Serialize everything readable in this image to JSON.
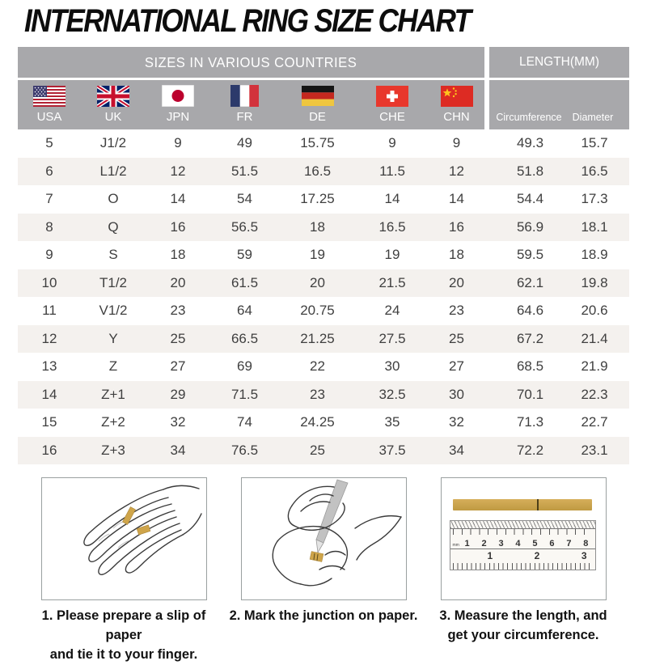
{
  "title": "INTERNATIONAL RING SIZE CHART",
  "table": {
    "group_headers": [
      {
        "label": "SIZES IN VARIOUS COUNTRIES"
      },
      {
        "label": "LENGTH(MM)"
      }
    ],
    "columns": [
      {
        "id": "usa",
        "label": "USA",
        "icon": "usa-flag-icon"
      },
      {
        "id": "uk",
        "label": "UK",
        "icon": "uk-flag-icon"
      },
      {
        "id": "jpn",
        "label": "JPN",
        "icon": "japan-flag-icon"
      },
      {
        "id": "fr",
        "label": "FR",
        "icon": "france-flag-icon"
      },
      {
        "id": "de",
        "label": "DE",
        "icon": "germany-flag-icon"
      },
      {
        "id": "che",
        "label": "CHE",
        "icon": "switzerland-flag-icon"
      },
      {
        "id": "chn",
        "label": "CHN",
        "icon": "china-flag-icon"
      },
      {
        "id": "circumference",
        "label": "Circumference"
      },
      {
        "id": "diameter",
        "label": "Diameter"
      }
    ],
    "rows": [
      [
        "5",
        "J1/2",
        "9",
        "49",
        "15.75",
        "9",
        "9",
        "49.3",
        "15.7"
      ],
      [
        "6",
        "L1/2",
        "12",
        "51.5",
        "16.5",
        "11.5",
        "12",
        "51.8",
        "16.5"
      ],
      [
        "7",
        "O",
        "14",
        "54",
        "17.25",
        "14",
        "14",
        "54.4",
        "17.3"
      ],
      [
        "8",
        "Q",
        "16",
        "56.5",
        "18",
        "16.5",
        "16",
        "56.9",
        "18.1"
      ],
      [
        "9",
        "S",
        "18",
        "59",
        "19",
        "19",
        "18",
        "59.5",
        "18.9"
      ],
      [
        "10",
        "T1/2",
        "20",
        "61.5",
        "20",
        "21.5",
        "20",
        "62.1",
        "19.8"
      ],
      [
        "11",
        "V1/2",
        "23",
        "64",
        "20.75",
        "24",
        "23",
        "64.6",
        "20.6"
      ],
      [
        "12",
        "Y",
        "25",
        "66.5",
        "21.25",
        "27.5",
        "25",
        "67.2",
        "21.4"
      ],
      [
        "13",
        "Z",
        "27",
        "69",
        "22",
        "30",
        "27",
        "68.5",
        "21.9"
      ],
      [
        "14",
        "Z+1",
        "29",
        "71.5",
        "23",
        "32.5",
        "30",
        "70.1",
        "22.3"
      ],
      [
        "15",
        "Z+2",
        "32",
        "74",
        "24.25",
        "35",
        "32",
        "71.3",
        "22.7"
      ],
      [
        "16",
        "Z+3",
        "34",
        "76.5",
        "25",
        "37.5",
        "34",
        "72.2",
        "23.1"
      ]
    ]
  },
  "instructions": [
    {
      "line1": "1. Please prepare a slip of paper",
      "line2": "and tie it to your finger."
    },
    {
      "line1": "2. Mark the junction on paper.",
      "line2": ""
    },
    {
      "line1": "3. Measure the length, and",
      "line2": "get your circumference."
    }
  ],
  "ruler": {
    "top_unit": "mm",
    "top_scale": [
      "1",
      "2",
      "3",
      "4",
      "5",
      "6",
      "7",
      "8"
    ],
    "bottom_scale": [
      "1",
      "2",
      "3"
    ]
  },
  "colors": {
    "header_bg": "#a8a8ab",
    "row_alt": "#f4f1ee",
    "text_col": "#3f3f3f",
    "gold": "#cfa54a"
  }
}
